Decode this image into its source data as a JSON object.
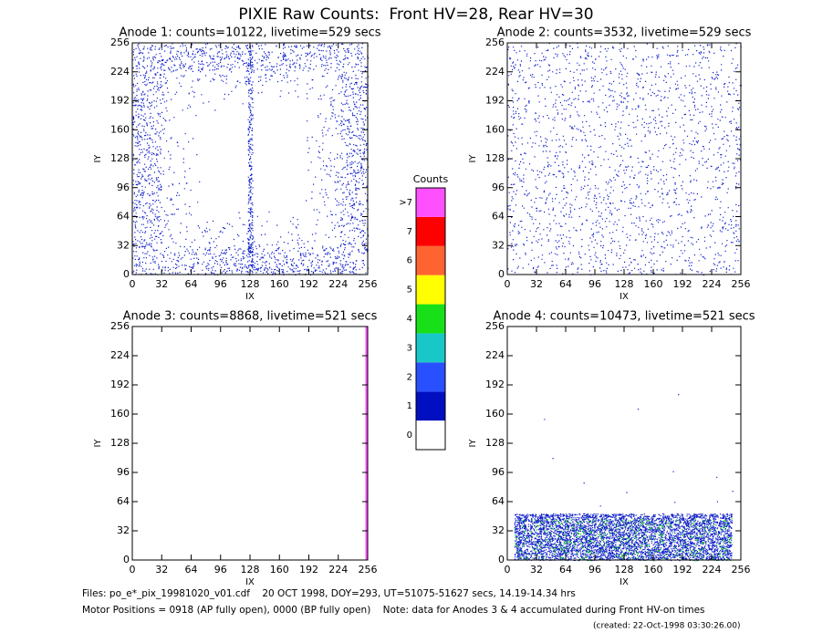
{
  "title": "PIXIE Raw Counts:  Front HV=28, Rear HV=30",
  "chart_data": [
    {
      "type": "heatmap",
      "title": "Anode 1: counts=10122, livetime=529 secs",
      "xlabel": "IX",
      "ylabel": "IY",
      "xlim": [
        0,
        256
      ],
      "ylim": [
        0,
        256
      ],
      "xticks": [
        0,
        32,
        64,
        96,
        128,
        160,
        192,
        224,
        256
      ],
      "yticks": [
        0,
        32,
        64,
        96,
        128,
        160,
        192,
        224,
        256
      ]
    },
    {
      "type": "heatmap",
      "title": "Anode 2: counts=3532, livetime=529 secs",
      "xlabel": "IX",
      "ylabel": "IY",
      "xlim": [
        0,
        256
      ],
      "ylim": [
        0,
        256
      ],
      "xticks": [
        0,
        32,
        64,
        96,
        128,
        160,
        192,
        224,
        256
      ],
      "yticks": [
        0,
        32,
        64,
        96,
        128,
        160,
        192,
        224,
        256
      ]
    },
    {
      "type": "heatmap",
      "title": "Anode 3: counts=8868, livetime=521 secs",
      "xlabel": "IX",
      "ylabel": "IY",
      "xlim": [
        0,
        256
      ],
      "ylim": [
        0,
        256
      ],
      "xticks": [
        0,
        32,
        64,
        96,
        128,
        160,
        192,
        224,
        256
      ],
      "yticks": [
        0,
        32,
        64,
        96,
        128,
        160,
        192,
        224,
        256
      ]
    },
    {
      "type": "heatmap",
      "title": "Anode 4: counts=10473, livetime=521 secs",
      "xlabel": "IX",
      "ylabel": "IY",
      "xlim": [
        0,
        256
      ],
      "ylim": [
        0,
        256
      ],
      "xticks": [
        0,
        32,
        64,
        96,
        128,
        160,
        192,
        224,
        256
      ],
      "yticks": [
        0,
        32,
        64,
        96,
        128,
        160,
        192,
        224,
        256
      ]
    },
    {
      "type": "colorbar",
      "title": "Counts",
      "labels": [
        "0",
        "1",
        "2",
        "3",
        "4",
        "5",
        "6",
        "7",
        ">7"
      ],
      "colors": [
        "#ffffff",
        "#0010c0",
        "#2850ff",
        "#18c8c8",
        "#18e018",
        "#ffff00",
        "#ff6430",
        "#ff0000",
        "#ff50ff"
      ]
    }
  ],
  "footer": {
    "files": "Files: po_e*_pix_19981020_v01.cdf    20 OCT 1998, DOY=293, UT=51075-51627 secs, 14.19-14.34 hrs",
    "motor": "Motor Positions = 0918 (AP fully open), 0000 (BP fully open)    Note: data for Anodes 3 & 4 accumulated during Front HV-on times",
    "created": "(created: 22-Oct-1998 03:30:26.00)"
  }
}
